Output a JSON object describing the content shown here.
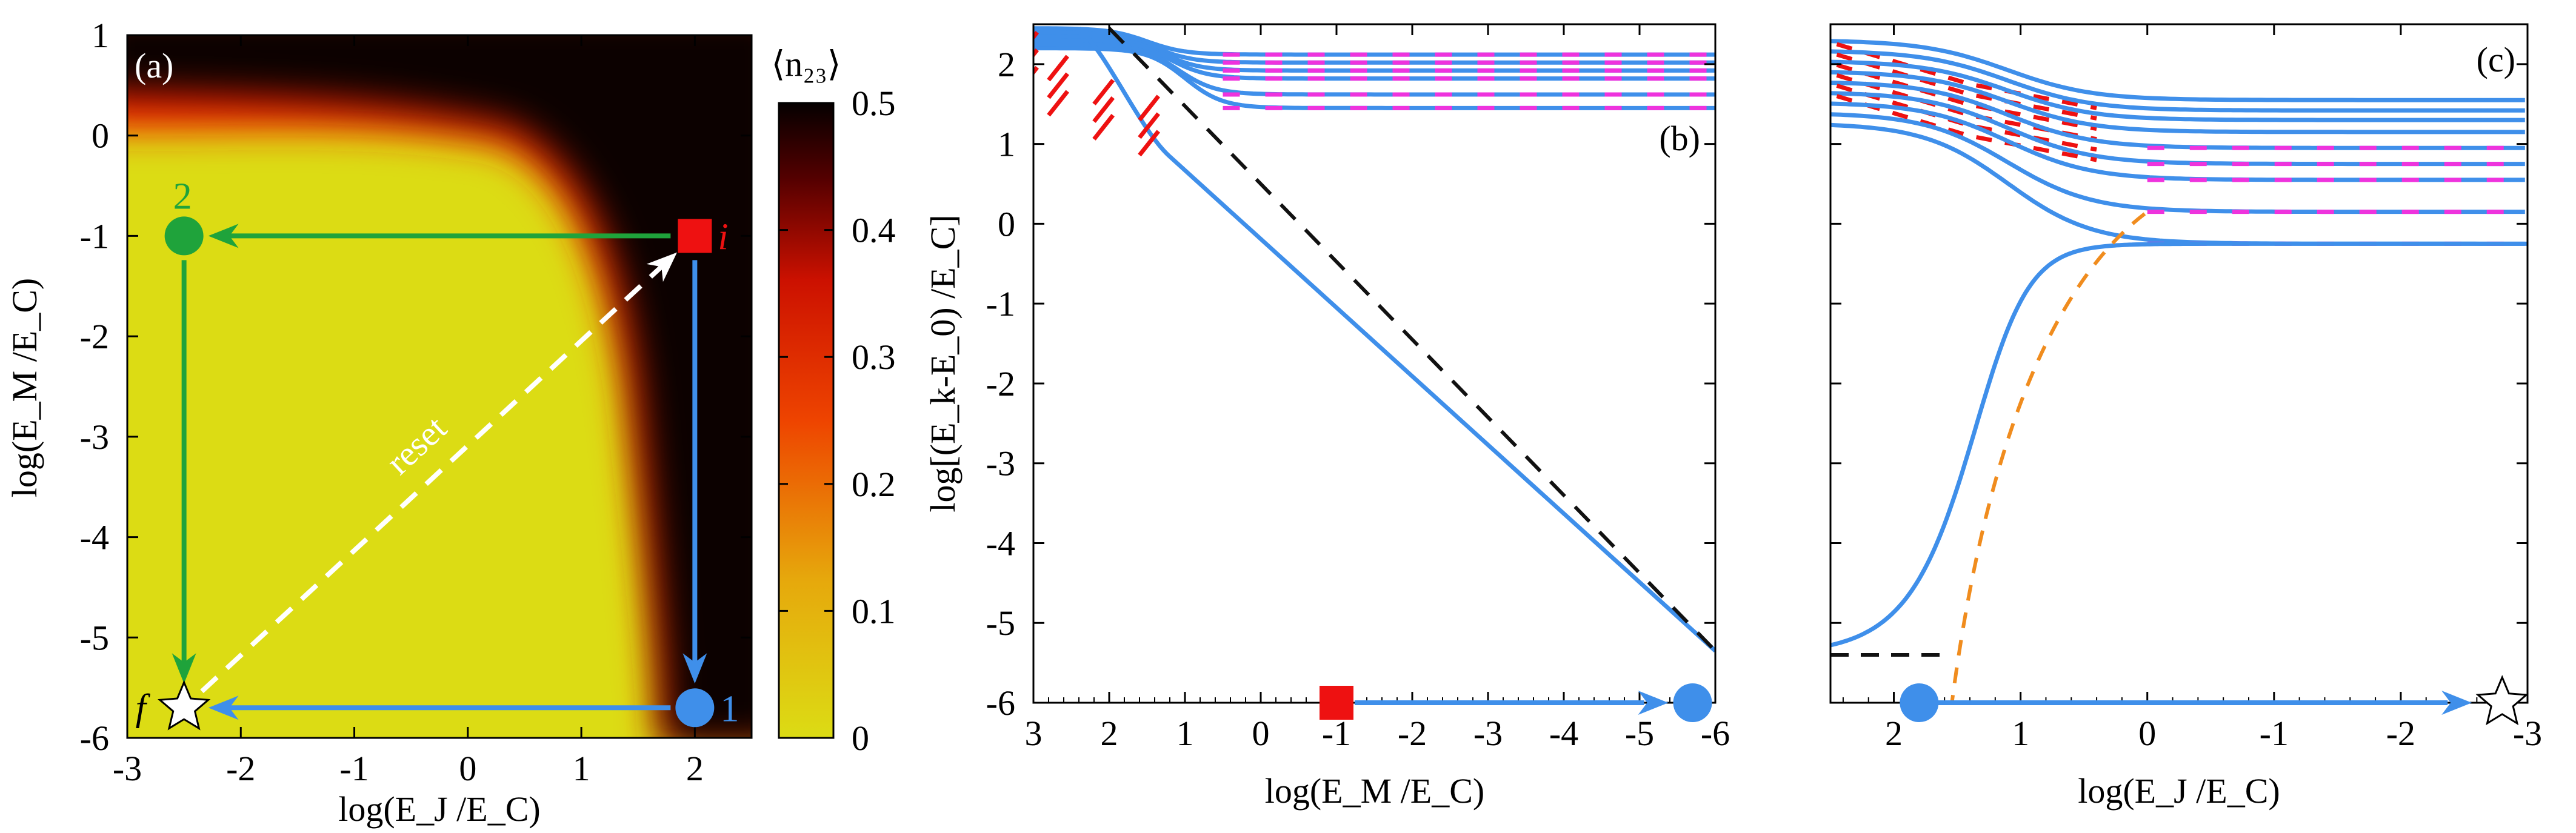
{
  "colors": {
    "blue": "#3f8fea",
    "green": "#1fa33b",
    "red": "#ee1111",
    "magenta": "#ee33dd",
    "orange": "#f08c1e",
    "black": "#111111",
    "white": "#ffffff",
    "yellow": "#dcdc14"
  },
  "chart_data": [
    {
      "panel": "a",
      "type": "heatmap",
      "label": "(a)",
      "xlabel": "log(E_J /E_C)",
      "ylabel": "log(E_M /E_C)",
      "xlim": [
        -3,
        2.5
      ],
      "ylim": [
        -6,
        1
      ],
      "xticks": [
        -3,
        -2,
        -1,
        0,
        1,
        2
      ],
      "yticks": [
        1,
        0,
        -1,
        -2,
        -3,
        -4,
        -5,
        -6
      ],
      "colorbar": {
        "title": "⟨n₂₃⟩",
        "range": [
          0,
          0.5
        ],
        "ticks": [
          0,
          0.1,
          0.2,
          0.3,
          0.4,
          0.5
        ],
        "colormap": [
          "#dcdc14",
          "#ee2a00",
          "#050000"
        ]
      },
      "points": [
        {
          "label": "i",
          "x": 2,
          "y": -1,
          "shape": "square",
          "color": "red"
        },
        {
          "label": "2",
          "x": -2.5,
          "y": -1,
          "shape": "circle",
          "color": "green"
        },
        {
          "label": "1",
          "x": 2,
          "y": -5.7,
          "shape": "circle",
          "color": "blue"
        },
        {
          "label": "f",
          "x": -2.5,
          "y": -5.7,
          "shape": "star",
          "color": "white"
        }
      ],
      "paths": [
        {
          "from": "i",
          "to": "2",
          "color": "green"
        },
        {
          "from": "2",
          "to": "f",
          "color": "green"
        },
        {
          "from": "i",
          "to": "1",
          "color": "blue"
        },
        {
          "from": "1",
          "to": "f",
          "color": "blue"
        },
        {
          "from": "f",
          "to": "i",
          "color": "white",
          "dashed": true,
          "label": "reset"
        }
      ]
    },
    {
      "panel": "b",
      "type": "line",
      "label": "(b)",
      "xlabel": "log(E_M /E_C)",
      "ylabel": "log[(E_k-E_0) /E_C]",
      "xlim": [
        3,
        -6
      ],
      "ylim": [
        -6,
        2.5
      ],
      "xticks": [
        3,
        2,
        1,
        0,
        -1,
        -2,
        -3,
        -4,
        -5,
        -6
      ],
      "yticks": [
        2,
        1,
        0,
        -1,
        -2,
        -3,
        -4,
        -5,
        -6
      ],
      "levels_plateau": [
        2.12,
        2.02,
        1.92,
        1.82,
        1.62,
        1.45
      ],
      "lowest_level": {
        "slope": 0.86,
        "at_x_minus6": -5.35
      },
      "markers": [
        {
          "x": -1,
          "y": -6,
          "shape": "square",
          "color": "red"
        },
        {
          "x": -5.7,
          "y": -6,
          "shape": "circle",
          "color": "blue"
        }
      ]
    },
    {
      "panel": "c",
      "type": "line",
      "label": "(c)",
      "xlabel": "log(E_J /E_C)",
      "ylabel": "",
      "xlim": [
        2.5,
        -3
      ],
      "ylim": [
        -6,
        2.5
      ],
      "xticks": [
        2,
        1,
        0,
        -1,
        -2,
        -3
      ],
      "yticks": [
        2,
        1,
        0,
        -1,
        -2,
        -3,
        -4,
        -5,
        -6
      ],
      "levels_plateau": [
        1.55,
        1.42,
        1.3,
        1.15,
        0.95,
        0.75,
        0.55,
        0.15,
        -0.25
      ],
      "lowest_level": {
        "low_value": -5.4,
        "rise_center": 1.25
      },
      "markers": [
        {
          "x": 1.8,
          "y": -6,
          "shape": "circle",
          "color": "blue"
        },
        {
          "x": -2.8,
          "y": -6,
          "shape": "star",
          "color": "white"
        }
      ]
    }
  ]
}
